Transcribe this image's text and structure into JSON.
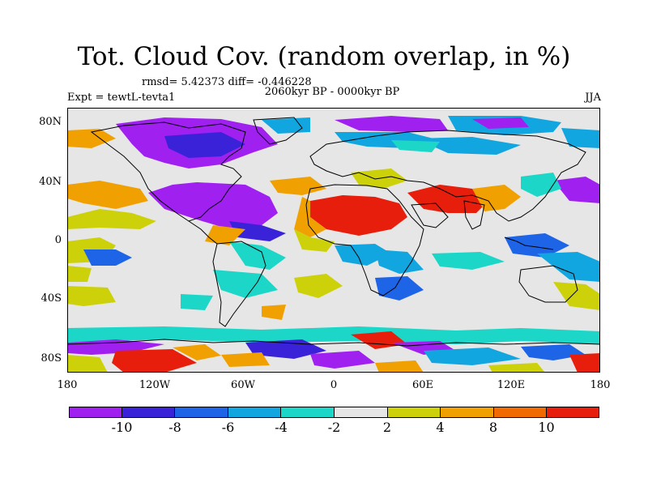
{
  "title": "Tot. Cloud Cov. (random overlap, in %)",
  "stats": "rmsd= 5.42373 diff= -0.446228",
  "period": "2060kyr BP - 0000kyr BP",
  "experiment": "Expt = tewtL-tevta1",
  "season": "JJA",
  "map": {
    "lat_ticks": [
      "80N",
      "40N",
      "0",
      "40S",
      "80S"
    ],
    "lon_ticks": [
      "180",
      "120W",
      "60W",
      "0",
      "60E",
      "120E",
      "180"
    ]
  },
  "colorbar": {
    "colors": [
      "#a020f0",
      "#3a22d9",
      "#1e64e6",
      "#12a6e0",
      "#1cd6c8",
      "#e6e6e6",
      "#cdd10a",
      "#f0a000",
      "#f06a00",
      "#e81e0c"
    ],
    "labels": [
      "-10",
      "-8",
      "-6",
      "-4",
      "-2",
      "2",
      "4",
      "8",
      "10"
    ]
  }
}
